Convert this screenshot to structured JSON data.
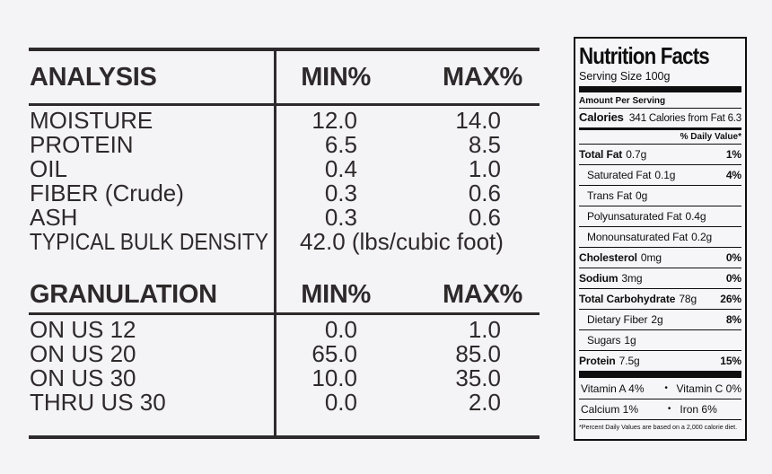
{
  "colors": {
    "background": "#f4f3f5",
    "table_ink": "#2e2a2b",
    "label_ink": "#0e0e0e"
  },
  "spec_table": {
    "sections": [
      {
        "header": {
          "label": "ANALYSIS",
          "min": "MIN%",
          "max": "MAX%"
        },
        "rows": [
          {
            "label": "MOISTURE",
            "min": "12.0",
            "max": "14.0"
          },
          {
            "label": "PROTEIN",
            "min": "6.5",
            "max": "8.5"
          },
          {
            "label": "OIL",
            "min": "0.4",
            "max": "1.0"
          },
          {
            "label": "FIBER (Crude)",
            "min": "0.3",
            "max": "0.6"
          },
          {
            "label": "ASH",
            "min": "0.3",
            "max": "0.6"
          },
          {
            "label": "TYPICAL BULK DENSITY",
            "span_value": "42.0 (lbs/cubic foot)"
          }
        ]
      },
      {
        "header": {
          "label": "GRANULATION",
          "min": "MIN%",
          "max": "MAX%"
        },
        "rows": [
          {
            "label": "ON US 12",
            "min": "0.0",
            "max": "1.0"
          },
          {
            "label": "ON US 20",
            "min": "65.0",
            "max": "85.0"
          },
          {
            "label": "ON US 30",
            "min": "10.0",
            "max": "35.0"
          },
          {
            "label": "THRU US 30",
            "min": "0.0",
            "max": "2.0"
          }
        ]
      }
    ]
  },
  "nutrition": {
    "title": "Nutrition Facts",
    "serving_size": "Serving Size 100g",
    "amount_per_serving": "Amount Per Serving",
    "calories_label": "Calories",
    "calories_value": "341",
    "calories_from_fat": "Calories from Fat 6.3",
    "daily_value_header": "% Daily Value*",
    "rows": [
      {
        "name": "Total Fat",
        "amount": "0.7g",
        "dv": "1%"
      },
      {
        "name": "Saturated Fat",
        "amount": "0.1g",
        "dv": "4%"
      },
      {
        "name": "Trans Fat",
        "amount": "0g",
        "dv": ""
      },
      {
        "name": "Polyunsaturated Fat",
        "amount": "0.4g",
        "dv": ""
      },
      {
        "name": "Monounsaturated Fat",
        "amount": "0.2g",
        "dv": ""
      },
      {
        "name": "Cholesterol",
        "amount": "0mg",
        "dv": "0%"
      },
      {
        "name": "Sodium",
        "amount": "3mg",
        "dv": "0%"
      },
      {
        "name": "Total Carbohydrate",
        "amount": "78g",
        "dv": "26%"
      },
      {
        "name": "Dietary Fiber",
        "amount": "2g",
        "dv": "8%"
      },
      {
        "name": "Sugars",
        "amount": "1g",
        "dv": ""
      },
      {
        "name": "Protein",
        "amount": "7.5g",
        "dv": "15%"
      }
    ],
    "bullet": "•",
    "vitamins": [
      {
        "left": "Vitamin A 4%",
        "right": "Vitamin C 0%"
      },
      {
        "left": "Calcium 1%",
        "right": "Iron 6%"
      }
    ],
    "footnote": "*Percent Daily Values are based on a 2,000 calorie diet."
  }
}
